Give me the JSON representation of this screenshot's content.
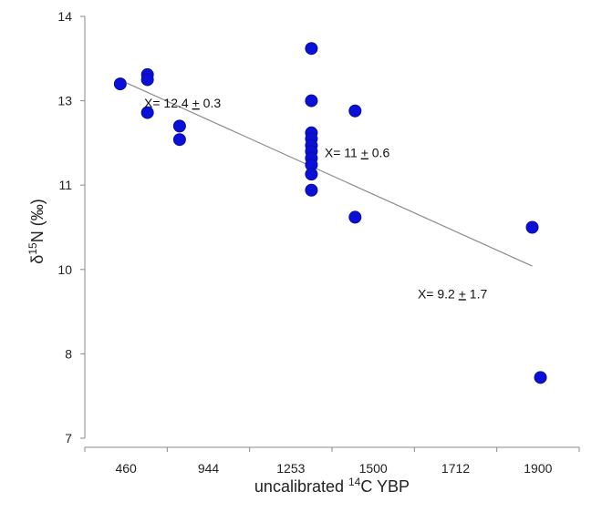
{
  "chart_data": {
    "type": "scatter",
    "title": "",
    "xlabel_parts": [
      "uncalibrated ",
      "14",
      "C YBP"
    ],
    "ylabel_parts": [
      "δ",
      "15",
      "N (‰)"
    ],
    "x_tick_labels": [
      "460",
      "944",
      "1253",
      "1500",
      "1712",
      "1900"
    ],
    "y_tick_labels": [
      "7",
      "8",
      "10",
      "11",
      "13",
      "14"
    ],
    "x_category_range": [
      0,
      6
    ],
    "y_category_range": [
      0,
      5
    ],
    "grid": false,
    "legend": "none",
    "marker_color": "#0a10d8",
    "marker_edge_color": "#0b0f9a",
    "trendline_color": "#8c8c8c",
    "points_in_axis_category_units": [
      {
        "x": 0.43,
        "y": 4.2
      },
      {
        "x": 0.76,
        "y": 4.31
      },
      {
        "x": 0.76,
        "y": 4.25
      },
      {
        "x": 0.76,
        "y": 3.86
      },
      {
        "x": 1.15,
        "y": 3.7
      },
      {
        "x": 1.15,
        "y": 3.54
      },
      {
        "x": 2.75,
        "y": 4.62
      },
      {
        "x": 2.75,
        "y": 4.0
      },
      {
        "x": 2.75,
        "y": 3.62
      },
      {
        "x": 2.75,
        "y": 3.55
      },
      {
        "x": 2.75,
        "y": 3.47
      },
      {
        "x": 2.75,
        "y": 3.4
      },
      {
        "x": 2.75,
        "y": 3.32
      },
      {
        "x": 2.75,
        "y": 3.24
      },
      {
        "x": 2.75,
        "y": 3.13
      },
      {
        "x": 2.75,
        "y": 2.94
      },
      {
        "x": 3.28,
        "y": 3.88
      },
      {
        "x": 3.28,
        "y": 2.62
      },
      {
        "x": 5.43,
        "y": 2.5
      },
      {
        "x": 5.53,
        "y": 0.72
      }
    ],
    "trendline": {
      "x_start": 0.51,
      "y_start": 4.21,
      "x_end": 5.43,
      "y_end": 2.04
    },
    "annotations": [
      {
        "text_parts": [
          "X= 12.4 ",
          "+",
          " 0.3"
        ],
        "x": 0.72,
        "y": 3.92
      },
      {
        "text_parts": [
          "X= 11 ",
          "+",
          " 0.6"
        ],
        "x": 2.91,
        "y": 3.33
      },
      {
        "text_parts": [
          "X= 9.2 ",
          "+",
          " 1.7"
        ],
        "x": 4.04,
        "y": 1.66
      }
    ]
  }
}
